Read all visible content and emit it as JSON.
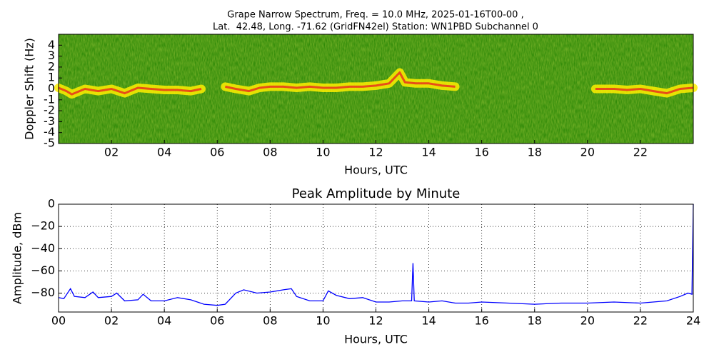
{
  "chart_data": [
    {
      "type": "spectrogram",
      "title": [
        "Grape Narrow Spectrum, Freq. = 10.0 MHz, 2025-01-16T00-00 ,",
        "Lat.  42.48, Long. -71.62 (GridFN42el) Station: WN1PBD Subchannel 0"
      ],
      "x_label": "Hours, UTC",
      "y_label": "Doppler Shift (Hz)",
      "x": [
        0,
        0.3,
        0.5,
        1,
        1.5,
        2,
        2.5,
        3,
        3.5,
        4,
        4.5,
        5,
        5.4,
        5.8,
        6.3,
        6.7,
        7.2,
        7.6,
        8,
        8.5,
        9,
        9.5,
        10,
        10.5,
        11,
        11.5,
        12,
        12.5,
        12.9,
        13.1,
        13.5,
        14,
        14.5,
        15,
        16,
        17,
        18,
        19,
        20,
        20.3,
        21,
        21.5,
        22,
        22.5,
        23,
        23.5,
        24
      ],
      "values": [
        0.1,
        -0.2,
        -0.5,
        0,
        -0.2,
        0,
        -0.4,
        0.1,
        0,
        -0.1,
        -0.1,
        -0.2,
        0,
        null,
        0.2,
        0,
        -0.2,
        0.1,
        0.2,
        0.2,
        0.1,
        0.2,
        0.1,
        0.1,
        0.2,
        0.2,
        0.3,
        0.5,
        1.5,
        0.6,
        0.5,
        0.5,
        0.3,
        0.2,
        null,
        null,
        null,
        null,
        null,
        0,
        0,
        -0.1,
        0,
        -0.2,
        -0.4,
        0,
        0.1
      ],
      "color": "#ffee00",
      "peak_color": "#e8281e",
      "background": "#2f8a08",
      "xlim": [
        0,
        24
      ],
      "ylim": [
        -5,
        5
      ],
      "xticks": [
        {
          "value": 2,
          "label": "02"
        },
        {
          "value": 4,
          "label": "04"
        },
        {
          "value": 6,
          "label": "06"
        },
        {
          "value": 8,
          "label": "08"
        },
        {
          "value": 10,
          "label": "10"
        },
        {
          "value": 12,
          "label": "12"
        },
        {
          "value": 14,
          "label": "14"
        },
        {
          "value": 16,
          "label": "16"
        },
        {
          "value": 18,
          "label": "18"
        },
        {
          "value": 20,
          "label": "20"
        },
        {
          "value": 22,
          "label": "22"
        }
      ],
      "yticks": [
        4,
        3,
        2,
        1,
        0,
        -1,
        -2,
        -3,
        -4,
        -5
      ],
      "grid": false
    },
    {
      "type": "line",
      "title": "Peak Amplitude by Minute",
      "x_label": "Hours, UTC",
      "y_label": "Amplitude, dBm",
      "x": [
        0,
        0.2,
        0.45,
        0.6,
        1,
        1.3,
        1.5,
        2,
        2.2,
        2.5,
        3,
        3.2,
        3.5,
        4,
        4.5,
        5,
        5.5,
        6,
        6.3,
        6.7,
        7,
        7.5,
        8,
        8.5,
        8.8,
        9,
        9.5,
        10,
        10.2,
        10.5,
        11,
        11.5,
        12,
        12.5,
        13,
        13.35,
        13.4,
        13.45,
        14,
        14.5,
        15,
        15.5,
        16,
        17,
        18,
        19,
        20,
        21,
        22,
        23,
        23.5,
        23.8,
        23.95,
        24
      ],
      "values": [
        -84,
        -85,
        -76,
        -83,
        -84,
        -79,
        -84,
        -83,
        -80,
        -87,
        -86,
        -81,
        -87,
        -87,
        -84,
        -86,
        -90,
        -91,
        -90,
        -80,
        -77,
        -80,
        -79,
        -77,
        -76,
        -83,
        -87,
        -87,
        -78,
        -82,
        -85,
        -84,
        -88,
        -88,
        -87,
        -87,
        -53,
        -87,
        -88,
        -87,
        -89,
        -89,
        -88,
        -89,
        -90,
        -89,
        -89,
        -88,
        -89,
        -87,
        -83,
        -80,
        -81,
        0
      ],
      "color": "#0000ff",
      "xlim": [
        0,
        24
      ],
      "ylim": [
        -97,
        0
      ],
      "xticks": [
        {
          "value": 0,
          "label": "00"
        },
        {
          "value": 2,
          "label": "02"
        },
        {
          "value": 4,
          "label": "04"
        },
        {
          "value": 6,
          "label": "06"
        },
        {
          "value": 8,
          "label": "08"
        },
        {
          "value": 10,
          "label": "10"
        },
        {
          "value": 12,
          "label": "12"
        },
        {
          "value": 14,
          "label": "14"
        },
        {
          "value": 16,
          "label": "16"
        },
        {
          "value": 18,
          "label": "18"
        },
        {
          "value": 20,
          "label": "20"
        },
        {
          "value": 22,
          "label": "22"
        },
        {
          "value": 24,
          "label": "24"
        }
      ],
      "yticks": [
        0,
        {
          "value": -20,
          "label": "−20"
        },
        {
          "value": -40,
          "label": "−40"
        },
        {
          "value": -60,
          "label": "−60"
        },
        {
          "value": -80,
          "label": "−80"
        }
      ],
      "grid": true
    }
  ]
}
